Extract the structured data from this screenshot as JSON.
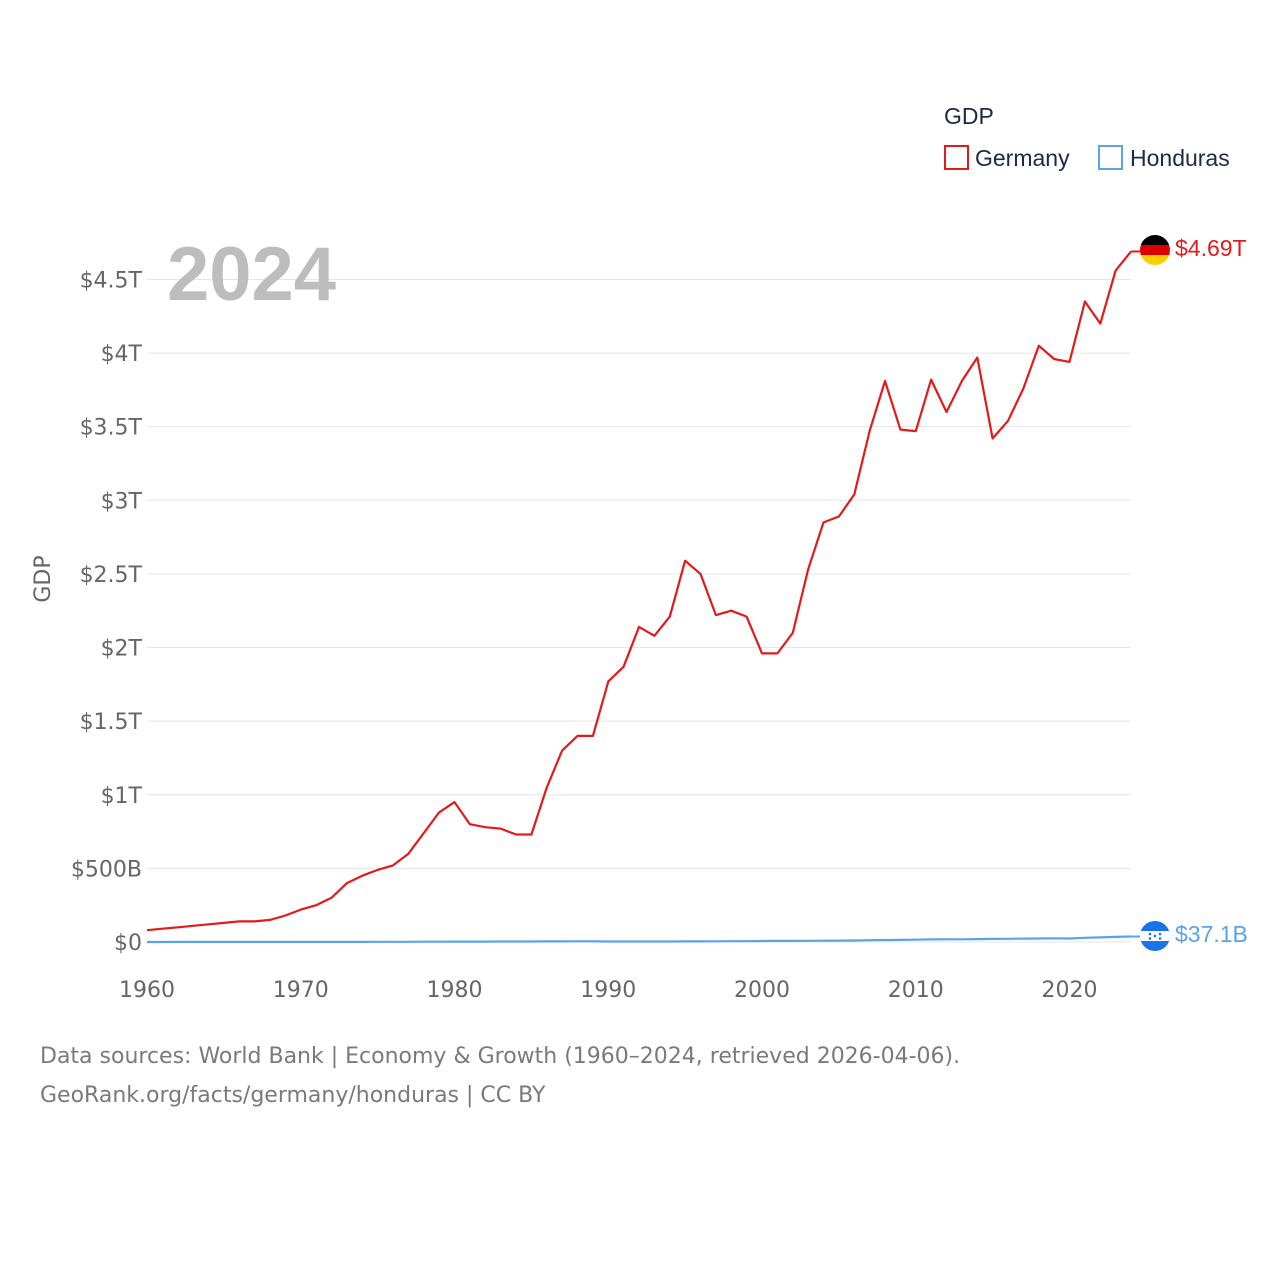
{
  "colors": {
    "germany": "#e31a1c",
    "honduras": "#5aa3e8",
    "year_watermark": "#bdbdbd",
    "grid": "#e6e6e6",
    "tick_text": "#666666",
    "legend_text": "#1b2b45"
  },
  "chart_data": {
    "type": "line",
    "title": "",
    "year_label": "2024",
    "ylabel": "GDP",
    "xlabel": "",
    "xlim": [
      1960,
      2024
    ],
    "ylim": [
      0,
      4.7
    ],
    "y_unit": "trillion USD",
    "grid": true,
    "legend": {
      "title": "GDP",
      "position": "top-right",
      "entries": [
        "Germany",
        "Honduras"
      ]
    },
    "x_ticks": [
      1960,
      1970,
      1980,
      1990,
      2000,
      2010,
      2020
    ],
    "y_ticks": [
      {
        "value": 0,
        "label": "$0"
      },
      {
        "value": 0.5,
        "label": "$500B"
      },
      {
        "value": 1,
        "label": "$1T"
      },
      {
        "value": 1.5,
        "label": "$1.5T"
      },
      {
        "value": 2,
        "label": "$2T"
      },
      {
        "value": 2.5,
        "label": "$2.5T"
      },
      {
        "value": 3,
        "label": "$3T"
      },
      {
        "value": 3.5,
        "label": "$3.5T"
      },
      {
        "value": 4,
        "label": "$4T"
      },
      {
        "value": 4.5,
        "label": "$4.5T"
      }
    ],
    "x": [
      1960,
      1961,
      1962,
      1963,
      1964,
      1965,
      1966,
      1967,
      1968,
      1969,
      1970,
      1971,
      1972,
      1973,
      1974,
      1975,
      1976,
      1977,
      1978,
      1979,
      1980,
      1981,
      1982,
      1983,
      1984,
      1985,
      1986,
      1987,
      1988,
      1989,
      1990,
      1991,
      1992,
      1993,
      1994,
      1995,
      1996,
      1997,
      1998,
      1999,
      2000,
      2001,
      2002,
      2003,
      2004,
      2005,
      2006,
      2007,
      2008,
      2009,
      2010,
      2011,
      2012,
      2013,
      2014,
      2015,
      2016,
      2017,
      2018,
      2019,
      2020,
      2021,
      2022,
      2023,
      2024
    ],
    "series": [
      {
        "name": "Germany",
        "end_label": "$4.69T",
        "values": [
          0.08,
          0.09,
          0.1,
          0.11,
          0.12,
          0.13,
          0.14,
          0.14,
          0.15,
          0.18,
          0.22,
          0.25,
          0.3,
          0.4,
          0.45,
          0.49,
          0.52,
          0.6,
          0.74,
          0.88,
          0.95,
          0.8,
          0.78,
          0.77,
          0.73,
          0.73,
          1.05,
          1.3,
          1.4,
          1.4,
          1.77,
          1.87,
          2.14,
          2.08,
          2.21,
          2.59,
          2.5,
          2.22,
          2.25,
          2.21,
          1.96,
          1.96,
          2.1,
          2.53,
          2.85,
          2.89,
          3.04,
          3.47,
          3.81,
          3.48,
          3.47,
          3.82,
          3.6,
          3.81,
          3.97,
          3.42,
          3.54,
          3.76,
          4.05,
          3.96,
          3.94,
          4.35,
          4.2,
          4.56,
          4.69
        ]
      },
      {
        "name": "Honduras",
        "end_label": "$37.1B",
        "values": [
          0.0003,
          0.0003,
          0.0004,
          0.0004,
          0.0004,
          0.0005,
          0.0005,
          0.0006,
          0.0006,
          0.0006,
          0.0007,
          0.0007,
          0.0008,
          0.0009,
          0.001,
          0.0011,
          0.0013,
          0.0015,
          0.0018,
          0.002,
          0.0025,
          0.0027,
          0.0029,
          0.0031,
          0.0034,
          0.0036,
          0.0039,
          0.0042,
          0.0046,
          0.005,
          0.0031,
          0.0032,
          0.0034,
          0.0035,
          0.0033,
          0.0039,
          0.004,
          0.0046,
          0.0053,
          0.0055,
          0.0071,
          0.0075,
          0.0077,
          0.008,
          0.0085,
          0.0094,
          0.0103,
          0.0124,
          0.0138,
          0.0145,
          0.0158,
          0.0177,
          0.0185,
          0.0185,
          0.0198,
          0.0208,
          0.0215,
          0.023,
          0.0241,
          0.0251,
          0.0238,
          0.0284,
          0.0314,
          0.0344,
          0.0371
        ]
      }
    ]
  },
  "footer": {
    "line1": "Data sources: World Bank | Economy & Growth (1960–2024, retrieved 2026-04-06).",
    "line2": "GeoRank.org/facts/germany/honduras | CC BY"
  }
}
